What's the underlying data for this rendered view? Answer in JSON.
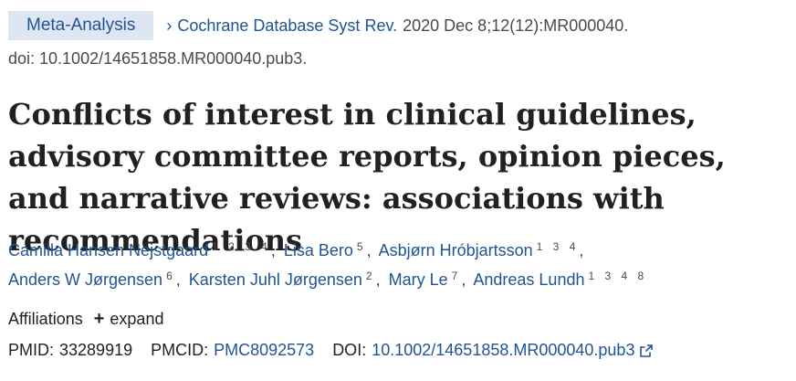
{
  "header": {
    "badge": "Meta-Analysis",
    "journal": "Cochrane Database Syst Rev.",
    "citation": "2020 Dec 8;12(12):MR000040.",
    "doi_line": "doi: 10.1002/14651858.MR000040.pub3."
  },
  "title": "Conflicts of interest in clinical guidelines, advisory committee reports, opinion pieces, and narrative reviews: associations with recommendations",
  "authors": [
    {
      "name": "Camilla Hansen Nejstgaard",
      "affiliations": "1 2 3 4"
    },
    {
      "name": "Lisa Bero",
      "affiliations": "5"
    },
    {
      "name": "Asbjørn Hróbjartsson",
      "affiliations": "1 3 4"
    },
    {
      "name": "Anders W Jørgensen",
      "affiliations": "6"
    },
    {
      "name": "Karsten Juhl Jørgensen",
      "affiliations": "2"
    },
    {
      "name": "Mary Le",
      "affiliations": "7"
    },
    {
      "name": "Andreas Lundh",
      "affiliations": "1 3 4 8"
    }
  ],
  "affiliations": {
    "label": "Affiliations",
    "expand": "expand"
  },
  "identifiers": {
    "pmid_label": "PMID:",
    "pmid": "33289919",
    "pmcid_label": "PMCID:",
    "pmcid": "PMC8092573",
    "doi_label": "DOI:",
    "doi": "10.1002/14651858.MR000040.pub3"
  },
  "icons": {
    "chevron": "chevron-right-icon",
    "plus": "plus-icon",
    "external": "external-link-icon"
  },
  "colors": {
    "link": "#205493",
    "badge_bg": "#dfe6f3",
    "text": "#212121",
    "muted": "#4a4a4a"
  }
}
